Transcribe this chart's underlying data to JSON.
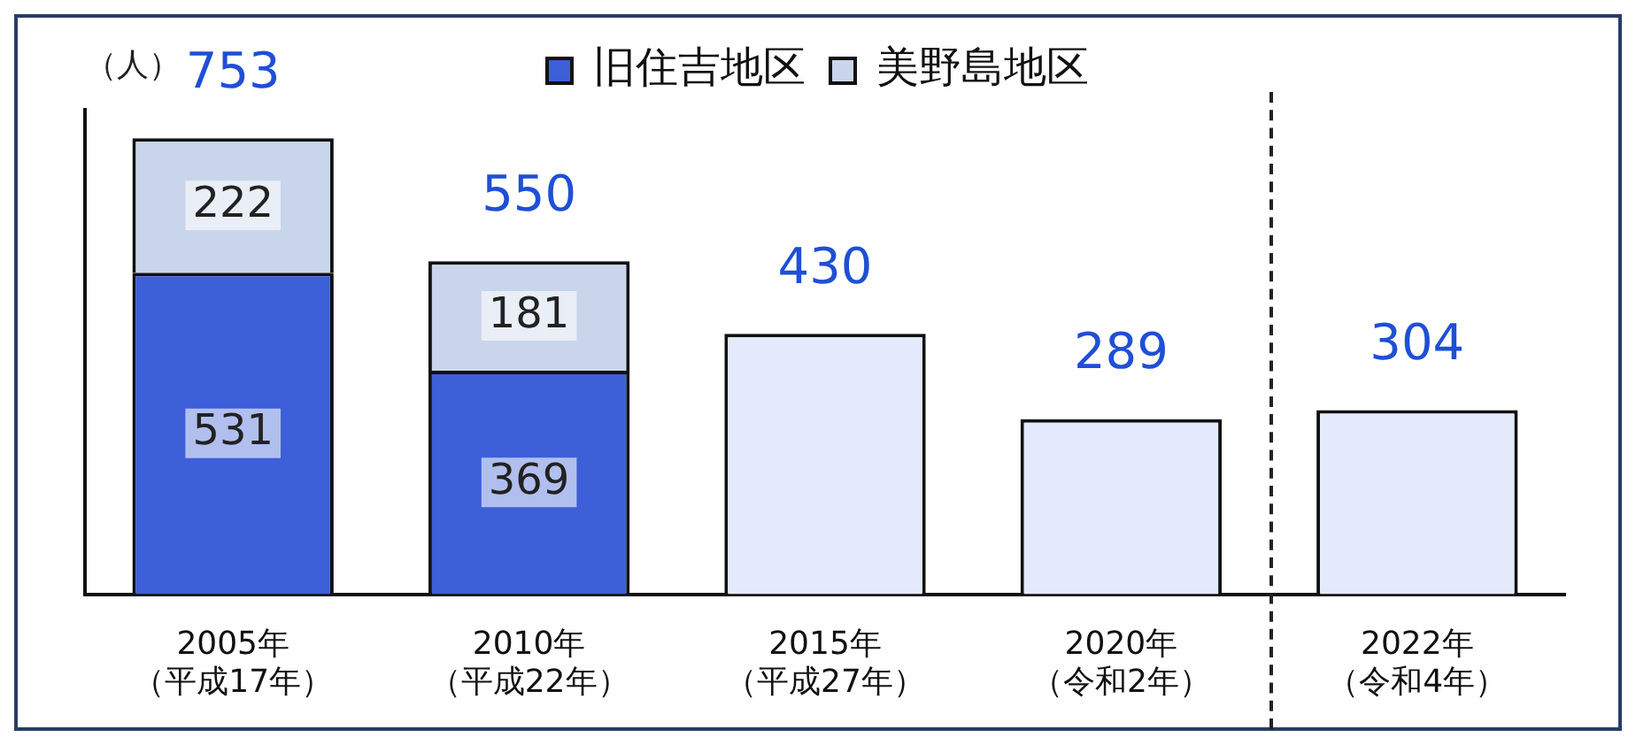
{
  "chart_data": {
    "type": "bar",
    "stacked": true,
    "ylabel": "（人）",
    "legend": "top",
    "categories": [
      "2005年（平成17年）",
      "2010年（平成22年）",
      "2015年（平成27年）",
      "2020年（令和2年）",
      "2022年（令和4年）"
    ],
    "series": [
      {
        "name": "旧住吉地区",
        "color": "#3d5fd8",
        "values": [
          531,
          369,
          null,
          null,
          null
        ],
        "value_labels": [
          "531",
          "369",
          null,
          null,
          null
        ]
      },
      {
        "name": "美野島地区",
        "color": "#c9d5ea",
        "values": [
          222,
          181,
          null,
          null,
          null
        ],
        "value_labels": [
          "222",
          "181",
          null,
          null,
          null
        ]
      },
      {
        "color": "#e3eafb",
        "values": [
          null,
          null,
          430,
          289,
          304
        ]
      }
    ],
    "totals": [
      "753",
      "550",
      "430",
      "289",
      "304"
    ]
  }
}
